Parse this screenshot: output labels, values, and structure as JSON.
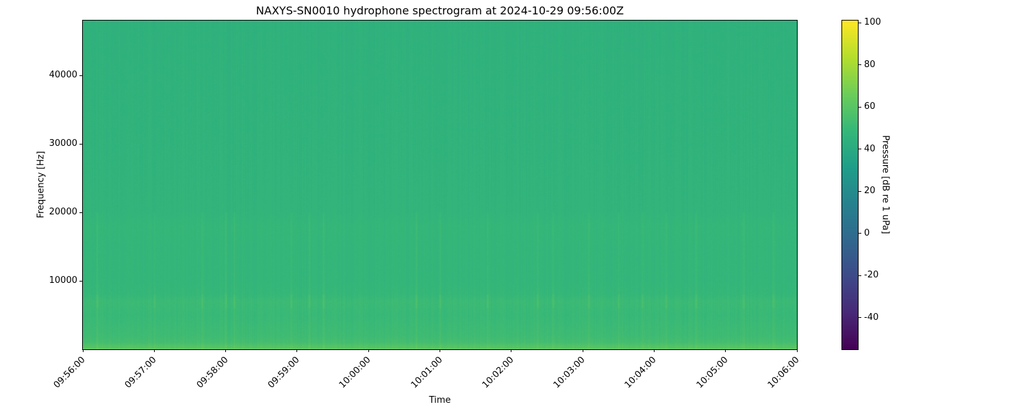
{
  "chart_data": {
    "type": "heatmap",
    "title": "NAXYS-SN0010 hydrophone spectrogram at 2024-10-29 09:56:00Z",
    "xlabel": "Time",
    "ylabel": "Frequency [Hz]",
    "colorbar_label": "Pressure [dB re 1 uPa]",
    "colormap": "viridis",
    "xlim": [
      "09:56:00",
      "10:06:00"
    ],
    "ylim": [
      0,
      48000
    ],
    "clim": [
      -55,
      101
    ],
    "x_ticks": [
      "09:56:00",
      "09:57:00",
      "09:58:00",
      "09:59:00",
      "10:00:00",
      "10:01:00",
      "10:02:00",
      "10:03:00",
      "10:04:00",
      "10:05:00",
      "10:06:00"
    ],
    "y_ticks": [
      10000,
      20000,
      30000,
      40000
    ],
    "colorbar_ticks": [
      100,
      80,
      60,
      40,
      20,
      0,
      -20,
      -40
    ],
    "frequency_profile": {
      "frequency_hz": [
        0,
        500,
        1000,
        2000,
        5000,
        7000,
        8000,
        10000,
        15000,
        18000,
        20000,
        30000,
        40000,
        48000
      ],
      "level_db": [
        62,
        58,
        54,
        52,
        50,
        51,
        49,
        48,
        48,
        48.5,
        47,
        46,
        45.5,
        45
      ]
    },
    "transient_times": [
      "09:56:12",
      "09:57:00",
      "09:57:40",
      "09:58:00",
      "09:58:07",
      "09:58:55",
      "09:59:10",
      "09:59:22",
      "10:00:40",
      "10:01:00",
      "10:01:40",
      "10:02:22",
      "10:02:35",
      "10:03:05",
      "10:03:30",
      "10:03:50",
      "10:04:10",
      "10:04:35",
      "10:05:15",
      "10:05:40"
    ]
  }
}
